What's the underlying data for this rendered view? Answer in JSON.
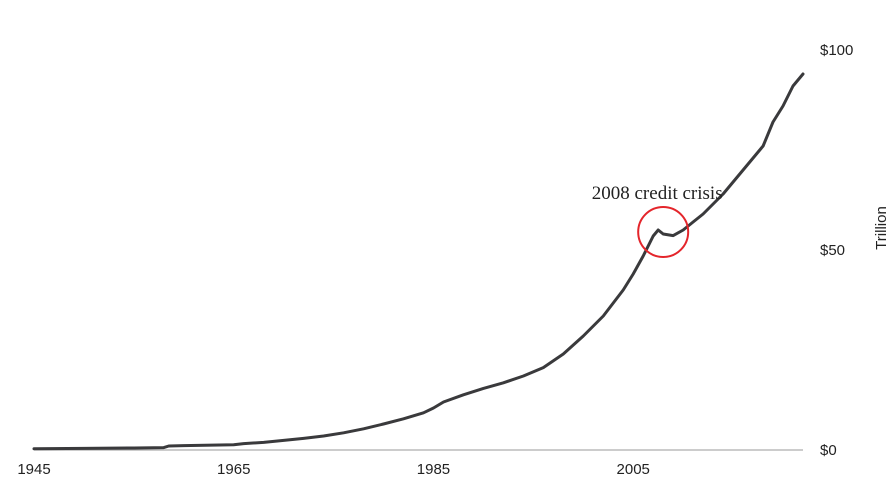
{
  "chart_data": {
    "type": "line",
    "title": "",
    "xlabel": "",
    "ylabel": "Trillion",
    "xlim": [
      1945,
      2022
    ],
    "ylim": [
      0,
      100
    ],
    "grid": false,
    "x_ticks": [
      {
        "value": 1945,
        "label": "1945"
      },
      {
        "value": 1965,
        "label": "1965"
      },
      {
        "value": 1985,
        "label": "1985"
      },
      {
        "value": 2005,
        "label": "2005"
      }
    ],
    "y_ticks": [
      {
        "value": 0,
        "label": "$0"
      },
      {
        "value": 50,
        "label": "$50"
      },
      {
        "value": 100,
        "label": "$100"
      }
    ],
    "series": [
      {
        "color": "#3a3a3c",
        "x": [
          1945,
          1950,
          1955,
          1958,
          1958.5,
          1960,
          1965,
          1966,
          1968,
          1970,
          1972,
          1974,
          1976,
          1978,
          1980,
          1982,
          1984,
          1985,
          1986,
          1988,
          1990,
          1992,
          1994,
          1996,
          1998,
          2000,
          2002,
          2004,
          2005,
          2006,
          2007,
          2007.5,
          2008,
          2009,
          2010,
          2011,
          2012,
          2013,
          2014,
          2015,
          2016,
          2017,
          2018,
          2019,
          2020,
          2021,
          2022
        ],
        "y": [
          0.3,
          0.4,
          0.5,
          0.6,
          1.0,
          1.1,
          1.3,
          1.6,
          1.9,
          2.4,
          2.9,
          3.5,
          4.3,
          5.3,
          6.5,
          7.8,
          9.3,
          10.5,
          12.0,
          13.8,
          15.4,
          16.8,
          18.5,
          20.6,
          24.0,
          28.5,
          33.5,
          40.0,
          44.0,
          48.5,
          53.5,
          55.0,
          54.0,
          53.6,
          55.0,
          57.0,
          59.0,
          61.5,
          64.0,
          67.0,
          70.0,
          73.0,
          76.0,
          82.0,
          86.0,
          91.0,
          94.0
        ]
      }
    ],
    "annotations": [
      {
        "text": "2008 credit crisis",
        "x": 2008,
        "y": 54.5,
        "marker": "circle",
        "marker_color": "#e4252b"
      }
    ]
  }
}
